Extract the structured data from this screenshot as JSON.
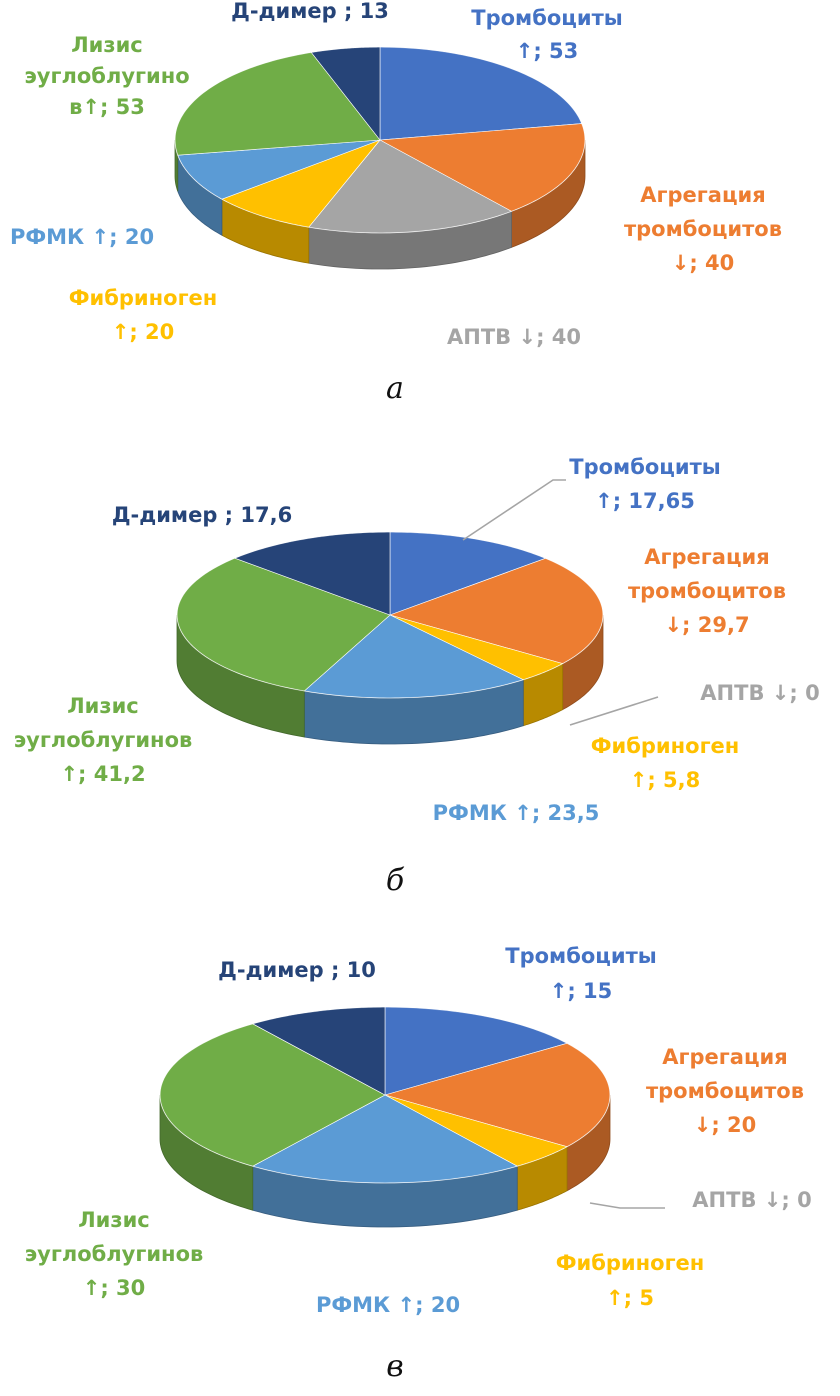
{
  "colors": {
    "platelets": "#4472C4",
    "aggregation": "#ED7D31",
    "aptt": "#A5A5A5",
    "fibrinogen": "#FFC000",
    "sfmc": "#5B9BD5",
    "lysis": "#70AD47",
    "ddimer": "#264478"
  },
  "chart_data": [
    {
      "type": "pie",
      "caption": "а",
      "categories": [
        "Тромбоциты ↑",
        "Агрегация тромбоцитов ↓",
        "АПТВ ↓",
        "Фибриноген ↑",
        "РФМК ↑",
        "Лизис эуглоблугинов ↑",
        "Д-димер"
      ],
      "values": [
        53,
        40,
        40,
        20,
        20,
        53,
        13
      ],
      "labels": [
        [
          "Тромбоциты",
          "↑; 53"
        ],
        [
          "Агрегация",
          "тромбоцитов",
          "↓; 40"
        ],
        [
          "АПТВ ↓; 40"
        ],
        [
          "Фибриноген",
          "↑; 20"
        ],
        [
          "РФМК ↑; 20"
        ],
        [
          "Лизис",
          "эуглоблугино",
          "в↑; 53"
        ],
        [
          "Д-димер ; 13"
        ]
      ]
    },
    {
      "type": "pie",
      "caption": "б",
      "categories": [
        "Тромбоциты ↑",
        "Агрегация тромбоцитов ↓",
        "АПТВ ↓",
        "Фибриноген ↑",
        "РФМК ↑",
        "Лизис эуглоблугинов ↑",
        "Д-димер"
      ],
      "values": [
        17.65,
        29.7,
        0,
        5.8,
        23.5,
        41.2,
        17.6
      ],
      "labels": [
        [
          "Тромбоциты",
          "↑; 17,65"
        ],
        [
          "Агрегация",
          "тромбоцитов",
          "↓; 29,7"
        ],
        [
          "АПТВ ↓; 0"
        ],
        [
          "Фибриноген",
          "↑; 5,8"
        ],
        [
          "РФМК ↑; 23,5"
        ],
        [
          "Лизис",
          "эуглоблугинов",
          "↑; 41,2"
        ],
        [
          "Д-димер ; 17,6"
        ]
      ]
    },
    {
      "type": "pie",
      "caption": "в",
      "categories": [
        "Тромбоциты ↑",
        "Агрегация тромбоцитов ↓",
        "АПТВ ↓",
        "Фибриноген ↑",
        "РФМК ↑",
        "Лизис эуглоблугинов ↑",
        "Д-димер"
      ],
      "values": [
        15,
        20,
        0,
        5,
        20,
        30,
        10
      ],
      "labels": [
        [
          "Тромбоциты",
          "↑; 15"
        ],
        [
          "Агрегация",
          "тромбоцитов",
          "↓; 20"
        ],
        [
          "АПТВ ↓; 0"
        ],
        [
          "Фибриноген",
          "↑; 5"
        ],
        [
          "РФМК ↑; 20"
        ],
        [
          "Лизис",
          "эуглоблугинов",
          "↑; 30"
        ],
        [
          "Д-димер ; 10"
        ]
      ]
    }
  ]
}
